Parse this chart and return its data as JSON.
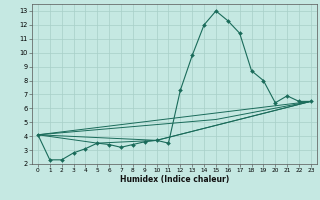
{
  "xlabel": "Humidex (Indice chaleur)",
  "bg_color": "#c5e8e2",
  "grid_color": "#a8cfc8",
  "line_color": "#1a6b5a",
  "xlim": [
    -0.5,
    23.5
  ],
  "ylim": [
    2,
    13.5
  ],
  "xticks": [
    0,
    1,
    2,
    3,
    4,
    5,
    6,
    7,
    8,
    9,
    10,
    11,
    12,
    13,
    14,
    15,
    16,
    17,
    18,
    19,
    20,
    21,
    22,
    23
  ],
  "yticks": [
    2,
    3,
    4,
    5,
    6,
    7,
    8,
    9,
    10,
    11,
    12,
    13
  ],
  "main_line": {
    "x": [
      0,
      1,
      2,
      3,
      4,
      5,
      6,
      7,
      8,
      9,
      10,
      11,
      12,
      13,
      14,
      15,
      16,
      17,
      18,
      19,
      20,
      21,
      22,
      23
    ],
    "y": [
      4.1,
      2.3,
      2.3,
      2.8,
      3.1,
      3.5,
      3.4,
      3.2,
      3.4,
      3.6,
      3.7,
      3.5,
      7.3,
      9.8,
      12.0,
      13.0,
      12.3,
      11.4,
      8.7,
      8.0,
      6.4,
      6.9,
      6.5,
      6.5
    ]
  },
  "ref_lines": [
    {
      "x": [
        0,
        23
      ],
      "y": [
        4.1,
        6.5
      ]
    },
    {
      "x": [
        0,
        15,
        23
      ],
      "y": [
        4.1,
        5.2,
        6.5
      ]
    },
    {
      "x": [
        0,
        10,
        23
      ],
      "y": [
        4.1,
        3.7,
        6.5
      ]
    },
    {
      "x": [
        0,
        5,
        10,
        23
      ],
      "y": [
        4.1,
        3.5,
        3.7,
        6.5
      ]
    }
  ]
}
